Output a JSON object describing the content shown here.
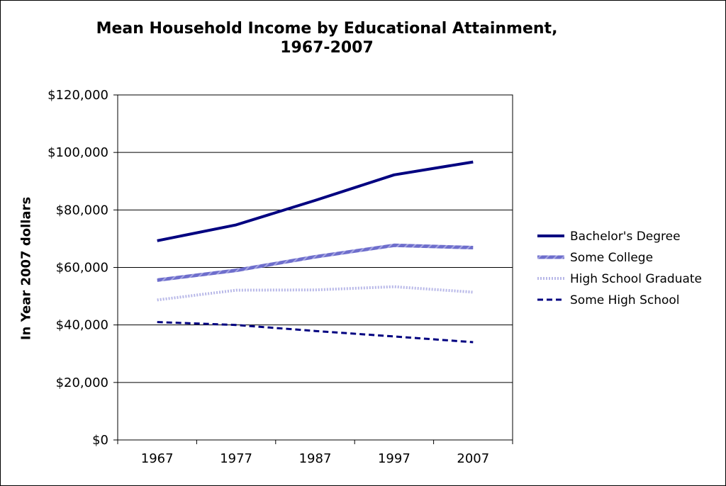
{
  "chart_data": {
    "type": "line",
    "title_lines": [
      "Mean Household Income by Educational Attainment,",
      "1967-2007"
    ],
    "xlabel": "",
    "ylabel": "In Year 2007 dollars",
    "categories": [
      "1967",
      "1977",
      "1987",
      "1997",
      "2007"
    ],
    "ylim": [
      0,
      120000
    ],
    "yticks": [
      0,
      20000,
      40000,
      60000,
      80000,
      100000,
      120000
    ],
    "ytick_labels": [
      "$0",
      "$20,000",
      "$40,000",
      "$60,000",
      "$80,000",
      "$100,000",
      "$120,000"
    ],
    "grid": "horizontal",
    "legend_position": "right",
    "series": [
      {
        "name": "Bachelor's Degree",
        "values": [
          69300,
          74800,
          83300,
          92200,
          96700
        ],
        "color": "#000080",
        "style": "solid"
      },
      {
        "name": "Some College",
        "values": [
          55600,
          59000,
          63700,
          67700,
          66900
        ],
        "color": "#6E6ECC",
        "style": "patterned"
      },
      {
        "name": "High School Graduate",
        "values": [
          48700,
          52100,
          52200,
          53300,
          51400
        ],
        "color": "#B8B8E8",
        "style": "dotted"
      },
      {
        "name": "Some High School",
        "values": [
          41000,
          40000,
          37900,
          36000,
          34000
        ],
        "color": "#000080",
        "style": "dashed"
      }
    ]
  }
}
